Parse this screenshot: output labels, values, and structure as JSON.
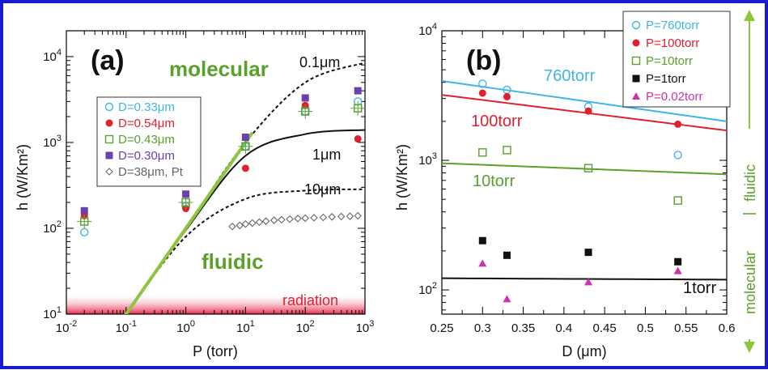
{
  "colors": {
    "border": "#1a1ad0",
    "cyan": "#3fb6e6",
    "red": "#e02030",
    "green": "#5aa02a",
    "black": "#111111",
    "purple": "#6a3fb0",
    "magenta": "#cc33aa",
    "gray": "#666666",
    "molecular_line": "#8cc63f",
    "radiation": "#e8284a"
  },
  "chart_data": [
    {
      "type": "scatter",
      "panel": "(a)",
      "xlabel": "P (torr)",
      "ylabel": "h (W/Km²)",
      "xscale": "log",
      "yscale": "log",
      "xlim": [
        0.01,
        1000
      ],
      "ylim": [
        10,
        20000
      ],
      "x_tick_labels": [
        "10-2",
        "10-1",
        "100",
        "101",
        "102",
        "103"
      ],
      "y_tick_labels": [
        "101",
        "102",
        "103",
        "104"
      ],
      "annotations": {
        "molecular": "molecular",
        "fluidic": "fluidic",
        "radiation": "radiation",
        "d01": "0.1μm",
        "d1": "1μm",
        "d10": "10μm"
      },
      "series": [
        {
          "name": "D=0.33μm",
          "marker": "open-circle",
          "color": "#3fb6e6",
          "x": [
            0.02,
            1,
            10,
            100,
            760
          ],
          "y": [
            90,
            180,
            900,
            2300,
            3000
          ]
        },
        {
          "name": "D=0.54μm",
          "marker": "filled-circle",
          "color": "#e02030",
          "x": [
            0.02,
            1,
            10,
            100,
            760
          ],
          "y": [
            140,
            170,
            500,
            2700,
            1100
          ]
        },
        {
          "name": "D=0.43μm",
          "marker": "open-square",
          "color": "#5aa02a",
          "x": [
            0.02,
            1,
            10,
            100,
            760
          ],
          "y": [
            120,
            200,
            900,
            2300,
            2500
          ]
        },
        {
          "name": "D=0.30μm",
          "marker": "filled-square",
          "color": "#6a3fb0",
          "x": [
            0.02,
            1,
            10,
            100,
            760
          ],
          "y": [
            160,
            250,
            1150,
            3300,
            4000
          ]
        },
        {
          "name": "D=38μm, Pt",
          "marker": "open-diamond",
          "color": "#666666",
          "x": [
            6,
            8,
            10,
            13,
            17,
            22,
            30,
            40,
            55,
            75,
            100,
            140,
            200,
            280,
            400,
            560,
            760
          ],
          "y": [
            105,
            108,
            112,
            115,
            118,
            121,
            124,
            126,
            128,
            130,
            131,
            133,
            134,
            136,
            137,
            138,
            140
          ]
        }
      ],
      "curves": [
        {
          "label": "0.1μm",
          "style": "dashed",
          "x": [
            0.1,
            1,
            10,
            100,
            1000
          ],
          "y": [
            10,
            100,
            1000,
            5000,
            8500
          ]
        },
        {
          "label": "1μm",
          "style": "solid",
          "x": [
            0.1,
            1,
            10,
            100,
            1000
          ],
          "y": [
            10,
            95,
            700,
            1250,
            1400
          ]
        },
        {
          "label": "10μm",
          "style": "dashed",
          "x": [
            0.1,
            1,
            10,
            100,
            1000
          ],
          "y": [
            10,
            80,
            220,
            275,
            285
          ]
        },
        {
          "label": "molecular",
          "style": "green-line",
          "x": [
            0.09,
            13
          ],
          "y": [
            9,
            1300
          ]
        }
      ]
    },
    {
      "type": "scatter",
      "panel": "(b)",
      "xlabel": "D (μm)",
      "ylabel": "h (W/Km²)",
      "xscale": "linear",
      "yscale": "log",
      "xlim": [
        0.25,
        0.6
      ],
      "ylim": [
        65,
        10000
      ],
      "x_tick_labels": [
        "0.25",
        "0.3",
        "0.35",
        "0.4",
        "0.45",
        "0.5",
        "0.55",
        "0.6"
      ],
      "y_tick_labels": [
        "102",
        "103",
        "104"
      ],
      "side_label": {
        "molecular": "molecular",
        "fluidic": "fluidic"
      },
      "series": [
        {
          "name": "P=760torr",
          "marker": "open-circle",
          "color": "#3fb6e6",
          "x": [
            0.3,
            0.33,
            0.43,
            0.54
          ],
          "y": [
            3900,
            3500,
            2600,
            1100
          ]
        },
        {
          "name": "P=100torr",
          "marker": "filled-circle",
          "color": "#e02030",
          "x": [
            0.3,
            0.33,
            0.43,
            0.54
          ],
          "y": [
            3300,
            3100,
            2400,
            1900
          ]
        },
        {
          "name": "P=10torr",
          "marker": "open-square",
          "color": "#5aa02a",
          "x": [
            0.3,
            0.33,
            0.43,
            0.54
          ],
          "y": [
            1150,
            1200,
            870,
            490
          ]
        },
        {
          "name": "P=1torr",
          "marker": "filled-square",
          "color": "#111111",
          "x": [
            0.3,
            0.33,
            0.43,
            0.54
          ],
          "y": [
            240,
            185,
            195,
            165
          ]
        },
        {
          "name": "P=0.02torr",
          "marker": "filled-triangle",
          "color": "#cc33aa",
          "x": [
            0.3,
            0.33,
            0.43,
            0.54
          ],
          "y": [
            160,
            85,
            115,
            140
          ]
        }
      ],
      "curves": [
        {
          "label": "760torr",
          "color": "#3fb6e6",
          "x": [
            0.25,
            0.6
          ],
          "y": [
            4100,
            2000
          ]
        },
        {
          "label": "100torr",
          "color": "#e02030",
          "x": [
            0.25,
            0.6
          ],
          "y": [
            3200,
            1700
          ]
        },
        {
          "label": "10torr",
          "color": "#5aa02a",
          "x": [
            0.25,
            0.6
          ],
          "y": [
            950,
            780
          ]
        },
        {
          "label": "1torr",
          "color": "#111111",
          "x": [
            0.25,
            0.6
          ],
          "y": [
            123,
            120
          ]
        }
      ]
    }
  ]
}
